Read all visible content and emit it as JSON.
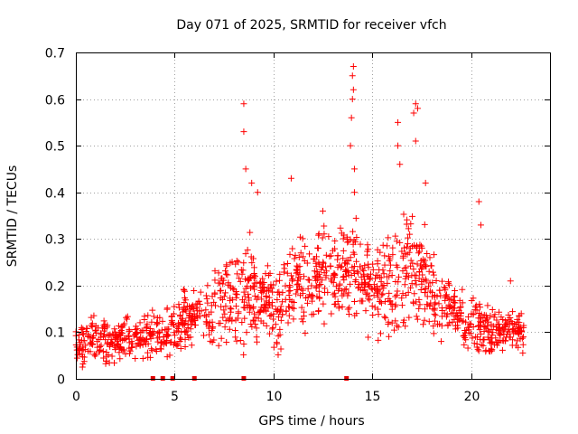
{
  "chart_data": {
    "type": "scatter",
    "title": "Day 071 of 2025, SRMTID for receiver vfch",
    "xlabel": "GPS time / hours",
    "ylabel": "SRMTID / TECUs",
    "xlim": [
      0,
      24
    ],
    "ylim": [
      0,
      0.7
    ],
    "xticks": [
      0,
      5,
      10,
      15,
      20
    ],
    "yticks": [
      0,
      0.1,
      0.2,
      0.3,
      0.4,
      0.5,
      0.6,
      0.7
    ],
    "xtick_labels": [
      "0",
      "5",
      "10",
      "15",
      "20"
    ],
    "ytick_labels": [
      "0",
      "0.1",
      "0.2",
      "0.3",
      "0.4",
      "0.5",
      "0.6",
      "0.7"
    ],
    "grid": true,
    "marker": "+",
    "series_color": "#ff0000",
    "flag_color": "#e00000",
    "data_range_hours": [
      0,
      22.7
    ],
    "envelope": {
      "note": "approximate median trend and spread of the dense point cloud (estimated from gridlines)",
      "hours": [
        0,
        1,
        2,
        3,
        4,
        5,
        6,
        7,
        8,
        9,
        10,
        11,
        12,
        13,
        14,
        15,
        16,
        17,
        18,
        19,
        20,
        21,
        22,
        22.7
      ],
      "median": [
        0.07,
        0.09,
        0.08,
        0.09,
        0.1,
        0.11,
        0.14,
        0.15,
        0.17,
        0.18,
        0.15,
        0.2,
        0.21,
        0.23,
        0.24,
        0.19,
        0.2,
        0.23,
        0.19,
        0.15,
        0.12,
        0.1,
        0.1,
        0.1
      ],
      "spread": [
        0.04,
        0.04,
        0.035,
        0.035,
        0.04,
        0.05,
        0.05,
        0.06,
        0.08,
        0.09,
        0.07,
        0.09,
        0.08,
        0.08,
        0.09,
        0.07,
        0.09,
        0.1,
        0.07,
        0.05,
        0.05,
        0.04,
        0.035,
        0.035
      ]
    },
    "notable_points": [
      {
        "x": 8.5,
        "y": 0.59
      },
      {
        "x": 8.5,
        "y": 0.53
      },
      {
        "x": 8.6,
        "y": 0.45
      },
      {
        "x": 8.9,
        "y": 0.42
      },
      {
        "x": 9.2,
        "y": 0.4
      },
      {
        "x": 10.9,
        "y": 0.43
      },
      {
        "x": 12.5,
        "y": 0.36
      },
      {
        "x": 13.9,
        "y": 0.5
      },
      {
        "x": 13.95,
        "y": 0.56
      },
      {
        "x": 14.0,
        "y": 0.6
      },
      {
        "x": 14.0,
        "y": 0.65
      },
      {
        "x": 14.05,
        "y": 0.67
      },
      {
        "x": 14.05,
        "y": 0.62
      },
      {
        "x": 14.1,
        "y": 0.45
      },
      {
        "x": 14.1,
        "y": 0.4
      },
      {
        "x": 16.3,
        "y": 0.55
      },
      {
        "x": 16.3,
        "y": 0.5
      },
      {
        "x": 16.4,
        "y": 0.46
      },
      {
        "x": 17.1,
        "y": 0.57
      },
      {
        "x": 17.2,
        "y": 0.59
      },
      {
        "x": 17.3,
        "y": 0.58
      },
      {
        "x": 17.2,
        "y": 0.51
      },
      {
        "x": 17.7,
        "y": 0.42
      },
      {
        "x": 20.4,
        "y": 0.38
      },
      {
        "x": 20.5,
        "y": 0.33
      },
      {
        "x": 22.0,
        "y": 0.21
      }
    ],
    "zero_flags_hours": [
      3.9,
      4.4,
      4.9,
      6.0,
      8.5,
      13.7
    ]
  }
}
